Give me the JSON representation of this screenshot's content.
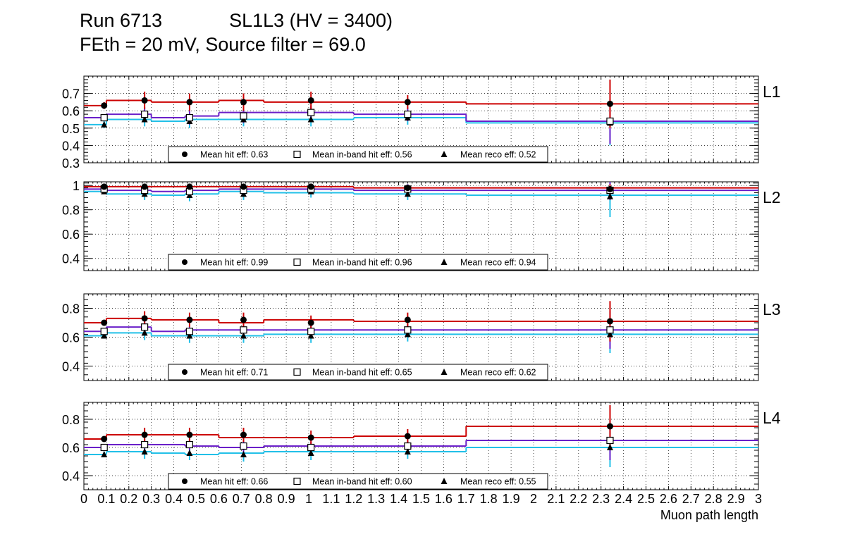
{
  "header": {
    "run": "Run 6713",
    "chamber": "SL1L3 (HV = 3400)",
    "subtitle": "FEth = 20 mV, Source filter = 69.0"
  },
  "colors": {
    "hit": "#cc0000",
    "inband": "#6a1fc9",
    "reco": "#22c0e8",
    "marker": "#000000",
    "grid": "#000000"
  },
  "chart_data": {
    "type": "scatter",
    "xlabel": "Muon path length",
    "xlim": [
      0,
      3
    ],
    "x_tick_labels": [
      "0",
      "0.1",
      "0.2",
      "0.3",
      "0.4",
      "0.5",
      "0.6",
      "0.7",
      "0.8",
      "0.9",
      "1",
      "1.1",
      "1.2",
      "1.3",
      "1.4",
      "1.5",
      "1.6",
      "1.7",
      "1.8",
      "1.9",
      "2",
      "2.1",
      "2.2",
      "2.3",
      "2.4",
      "2.5",
      "2.6",
      "2.7",
      "2.8",
      "2.9",
      "3"
    ],
    "bin_edges": [
      0.0,
      0.1,
      0.3,
      0.45,
      0.6,
      0.8,
      1.2,
      1.7,
      3.0
    ],
    "points_x": [
      0.09,
      0.27,
      0.47,
      0.71,
      1.01,
      1.44,
      2.34
    ],
    "grid": true,
    "legend_labels": [
      "Mean hit  eff: ",
      "Mean in-band hit eff: ",
      "Mean reco eff: "
    ],
    "panels": [
      {
        "label": "L1",
        "ylim": [
          0.3,
          0.8
        ],
        "yticks": [
          "0.3",
          "0.4",
          "0.5",
          "0.6",
          "0.7"
        ],
        "hit_eff": [
          0.63,
          0.66,
          0.65,
          0.65,
          0.66,
          0.65,
          0.64
        ],
        "hit_err": [
          0.02,
          0.05,
          0.05,
          0.05,
          0.05,
          0.04,
          0.14
        ],
        "inband_eff": [
          0.56,
          0.58,
          0.56,
          0.57,
          0.59,
          0.58,
          0.54
        ],
        "inband_err": [
          0.02,
          0.04,
          0.04,
          0.04,
          0.04,
          0.04,
          0.13
        ],
        "reco_eff": [
          0.52,
          0.55,
          0.54,
          0.55,
          0.55,
          0.56,
          0.53
        ],
        "reco_err": [
          0.02,
          0.04,
          0.04,
          0.04,
          0.04,
          0.04,
          0.13
        ],
        "hist_hit": [
          0.63,
          0.66,
          0.65,
          0.65,
          0.66,
          0.65,
          0.65,
          0.64
        ],
        "hist_inband": [
          0.56,
          0.58,
          0.56,
          0.57,
          0.59,
          0.59,
          0.58,
          0.54
        ],
        "hist_reco": [
          0.52,
          0.55,
          0.54,
          0.55,
          0.55,
          0.55,
          0.56,
          0.53
        ],
        "legend_values": [
          "0.63",
          "0.56",
          "0.52"
        ]
      },
      {
        "label": "L2",
        "ylim": [
          0.3,
          1.03
        ],
        "yticks": [
          "0.4",
          "0.6",
          "0.8",
          "1"
        ],
        "hit_eff": [
          0.99,
          0.99,
          0.99,
          0.99,
          0.99,
          0.98,
          0.97
        ],
        "hit_err": [
          0.01,
          0.01,
          0.01,
          0.01,
          0.01,
          0.02,
          0.04
        ],
        "inband_eff": [
          0.97,
          0.96,
          0.95,
          0.96,
          0.97,
          0.97,
          0.96
        ],
        "inband_err": [
          0.02,
          0.04,
          0.04,
          0.04,
          0.03,
          0.04,
          0.08
        ],
        "reco_eff": [
          0.95,
          0.93,
          0.92,
          0.93,
          0.95,
          0.93,
          0.91
        ],
        "reco_err": [
          0.02,
          0.05,
          0.05,
          0.05,
          0.05,
          0.05,
          0.17
        ],
        "hist_hit": [
          0.99,
          0.99,
          0.99,
          0.99,
          0.99,
          0.99,
          0.98,
          0.98
        ],
        "hist_inband": [
          0.97,
          0.96,
          0.95,
          0.96,
          0.97,
          0.97,
          0.96,
          0.96
        ],
        "hist_reco": [
          0.95,
          0.93,
          0.92,
          0.93,
          0.95,
          0.94,
          0.93,
          0.92
        ],
        "legend_values": [
          "0.99",
          "0.96",
          "0.94"
        ]
      },
      {
        "label": "L3",
        "ylim": [
          0.3,
          0.9
        ],
        "yticks": [
          "0.4",
          "0.6",
          "0.8"
        ],
        "hit_eff": [
          0.7,
          0.73,
          0.72,
          0.72,
          0.7,
          0.72,
          0.71
        ],
        "hit_err": [
          0.02,
          0.05,
          0.05,
          0.05,
          0.05,
          0.05,
          0.14
        ],
        "inband_eff": [
          0.64,
          0.67,
          0.64,
          0.65,
          0.64,
          0.65,
          0.65
        ],
        "inband_err": [
          0.02,
          0.04,
          0.04,
          0.04,
          0.04,
          0.04,
          0.13
        ],
        "reco_eff": [
          0.61,
          0.63,
          0.61,
          0.61,
          0.61,
          0.62,
          0.62
        ],
        "reco_err": [
          0.02,
          0.05,
          0.05,
          0.05,
          0.05,
          0.05,
          0.13
        ],
        "hist_hit": [
          0.7,
          0.73,
          0.72,
          0.72,
          0.7,
          0.72,
          0.71,
          0.71
        ],
        "hist_inband": [
          0.64,
          0.67,
          0.64,
          0.65,
          0.65,
          0.65,
          0.65,
          0.65
        ],
        "hist_reco": [
          0.61,
          0.63,
          0.61,
          0.61,
          0.61,
          0.62,
          0.62,
          0.62
        ],
        "legend_values": [
          "0.71",
          "0.65",
          "0.62"
        ]
      },
      {
        "label": "L4",
        "ylim": [
          0.3,
          0.92
        ],
        "yticks": [
          "0.4",
          "0.6",
          "0.8"
        ],
        "hit_eff": [
          0.66,
          0.69,
          0.69,
          0.69,
          0.67,
          0.68,
          0.75
        ],
        "hit_err": [
          0.02,
          0.05,
          0.05,
          0.05,
          0.05,
          0.05,
          0.15
        ],
        "inband_eff": [
          0.6,
          0.62,
          0.62,
          0.61,
          0.6,
          0.61,
          0.65
        ],
        "inband_err": [
          0.02,
          0.04,
          0.04,
          0.04,
          0.04,
          0.04,
          0.14
        ],
        "reco_eff": [
          0.55,
          0.57,
          0.56,
          0.55,
          0.56,
          0.57,
          0.6
        ],
        "reco_err": [
          0.02,
          0.05,
          0.05,
          0.05,
          0.05,
          0.05,
          0.14
        ],
        "hist_hit": [
          0.66,
          0.69,
          0.69,
          0.69,
          0.67,
          0.67,
          0.68,
          0.75
        ],
        "hist_inband": [
          0.6,
          0.62,
          0.62,
          0.61,
          0.6,
          0.61,
          0.61,
          0.65
        ],
        "hist_reco": [
          0.55,
          0.57,
          0.56,
          0.55,
          0.56,
          0.57,
          0.57,
          0.6
        ],
        "legend_values": [
          "0.66",
          "0.60",
          "0.55"
        ]
      }
    ]
  }
}
